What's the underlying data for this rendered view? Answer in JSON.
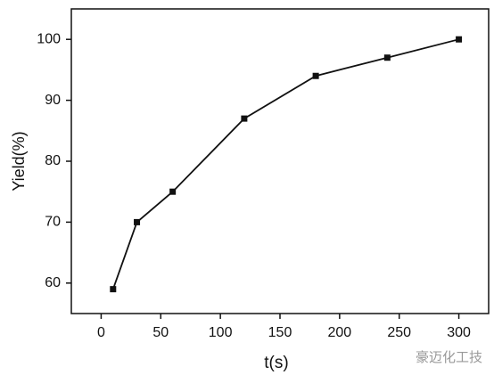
{
  "chart_data": {
    "type": "line",
    "x_label": "t(s)",
    "y_label": "Yield(%)",
    "x": [
      10,
      30,
      60,
      120,
      180,
      240,
      300
    ],
    "values": [
      59,
      70,
      75,
      87,
      94,
      97,
      100
    ],
    "color": "#111111",
    "xlim": [
      -25,
      325
    ],
    "xticks": [
      0,
      50,
      100,
      150,
      200,
      250,
      300
    ],
    "ylim": [
      55,
      105
    ],
    "yticks": [
      60,
      70,
      80,
      90,
      100
    ],
    "grid": false,
    "watermark": "豪迈化工技"
  }
}
